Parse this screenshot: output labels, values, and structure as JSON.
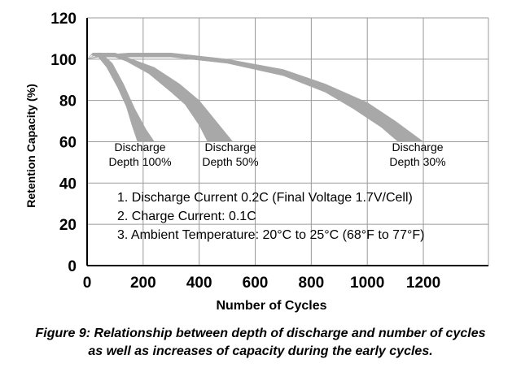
{
  "chart_data": {
    "type": "area",
    "title": "",
    "xlabel": "Number of Cycles",
    "ylabel": "Retention Capacity (%)",
    "xlim": [
      0,
      1400
    ],
    "ylim": [
      0,
      120
    ],
    "x_ticks": [
      "0",
      "200",
      "400",
      "600",
      "800",
      "1000",
      "1200"
    ],
    "y_ticks": [
      "0",
      "20",
      "40",
      "60",
      "80",
      "100",
      "120"
    ],
    "grid": true,
    "band_color": "#a8a8a8",
    "series": [
      {
        "name": "Discharge Depth 100%",
        "label_lines": [
          "Discharge",
          "Depth 100%"
        ],
        "upper": [
          [
            0,
            100
          ],
          [
            20,
            103
          ],
          [
            50,
            103
          ],
          [
            90,
            98
          ],
          [
            130,
            88
          ],
          [
            170,
            76
          ],
          [
            210,
            66
          ],
          [
            240,
            60
          ]
        ],
        "lower": [
          [
            0,
            100
          ],
          [
            15,
            102
          ],
          [
            40,
            101
          ],
          [
            70,
            96
          ],
          [
            110,
            86
          ],
          [
            140,
            77
          ],
          [
            160,
            68
          ],
          [
            180,
            60
          ]
        ]
      },
      {
        "name": "Discharge Depth 50%",
        "label_lines": [
          "Discharge",
          "Depth 50%"
        ],
        "upper": [
          [
            0,
            100
          ],
          [
            40,
            103
          ],
          [
            100,
            103
          ],
          [
            160,
            100
          ],
          [
            240,
            96
          ],
          [
            330,
            88
          ],
          [
            400,
            80
          ],
          [
            460,
            70
          ],
          [
            520,
            60
          ]
        ],
        "lower": [
          [
            0,
            100
          ],
          [
            30,
            102
          ],
          [
            80,
            102
          ],
          [
            140,
            99
          ],
          [
            220,
            93
          ],
          [
            300,
            84
          ],
          [
            350,
            78
          ],
          [
            400,
            68
          ],
          [
            430,
            60
          ]
        ]
      },
      {
        "name": "Discharge Depth 30%",
        "label_lines": [
          "Discharge",
          "Depth 30%"
        ],
        "upper": [
          [
            0,
            100
          ],
          [
            50,
            102
          ],
          [
            150,
            103
          ],
          [
            300,
            103
          ],
          [
            500,
            100
          ],
          [
            700,
            95
          ],
          [
            850,
            88
          ],
          [
            1000,
            79
          ],
          [
            1100,
            70
          ],
          [
            1200,
            60
          ]
        ],
        "lower": [
          [
            0,
            100
          ],
          [
            40,
            101
          ],
          [
            150,
            101
          ],
          [
            300,
            101
          ],
          [
            500,
            98
          ],
          [
            700,
            92
          ],
          [
            850,
            84
          ],
          [
            950,
            76
          ],
          [
            1050,
            67
          ],
          [
            1110,
            60
          ]
        ]
      }
    ],
    "notes": [
      "1. Discharge Current 0.2C (Final Voltage 1.7V/Cell)",
      "2. Charge Current: 0.1C",
      "3. Ambient Temperature: 20°C to 25°C (68°F to 77°F)"
    ]
  },
  "caption": {
    "line1": "Figure 9: Relationship between depth of discharge and number of cycles",
    "line2": "as well as increases of capacity during the early cycles."
  }
}
